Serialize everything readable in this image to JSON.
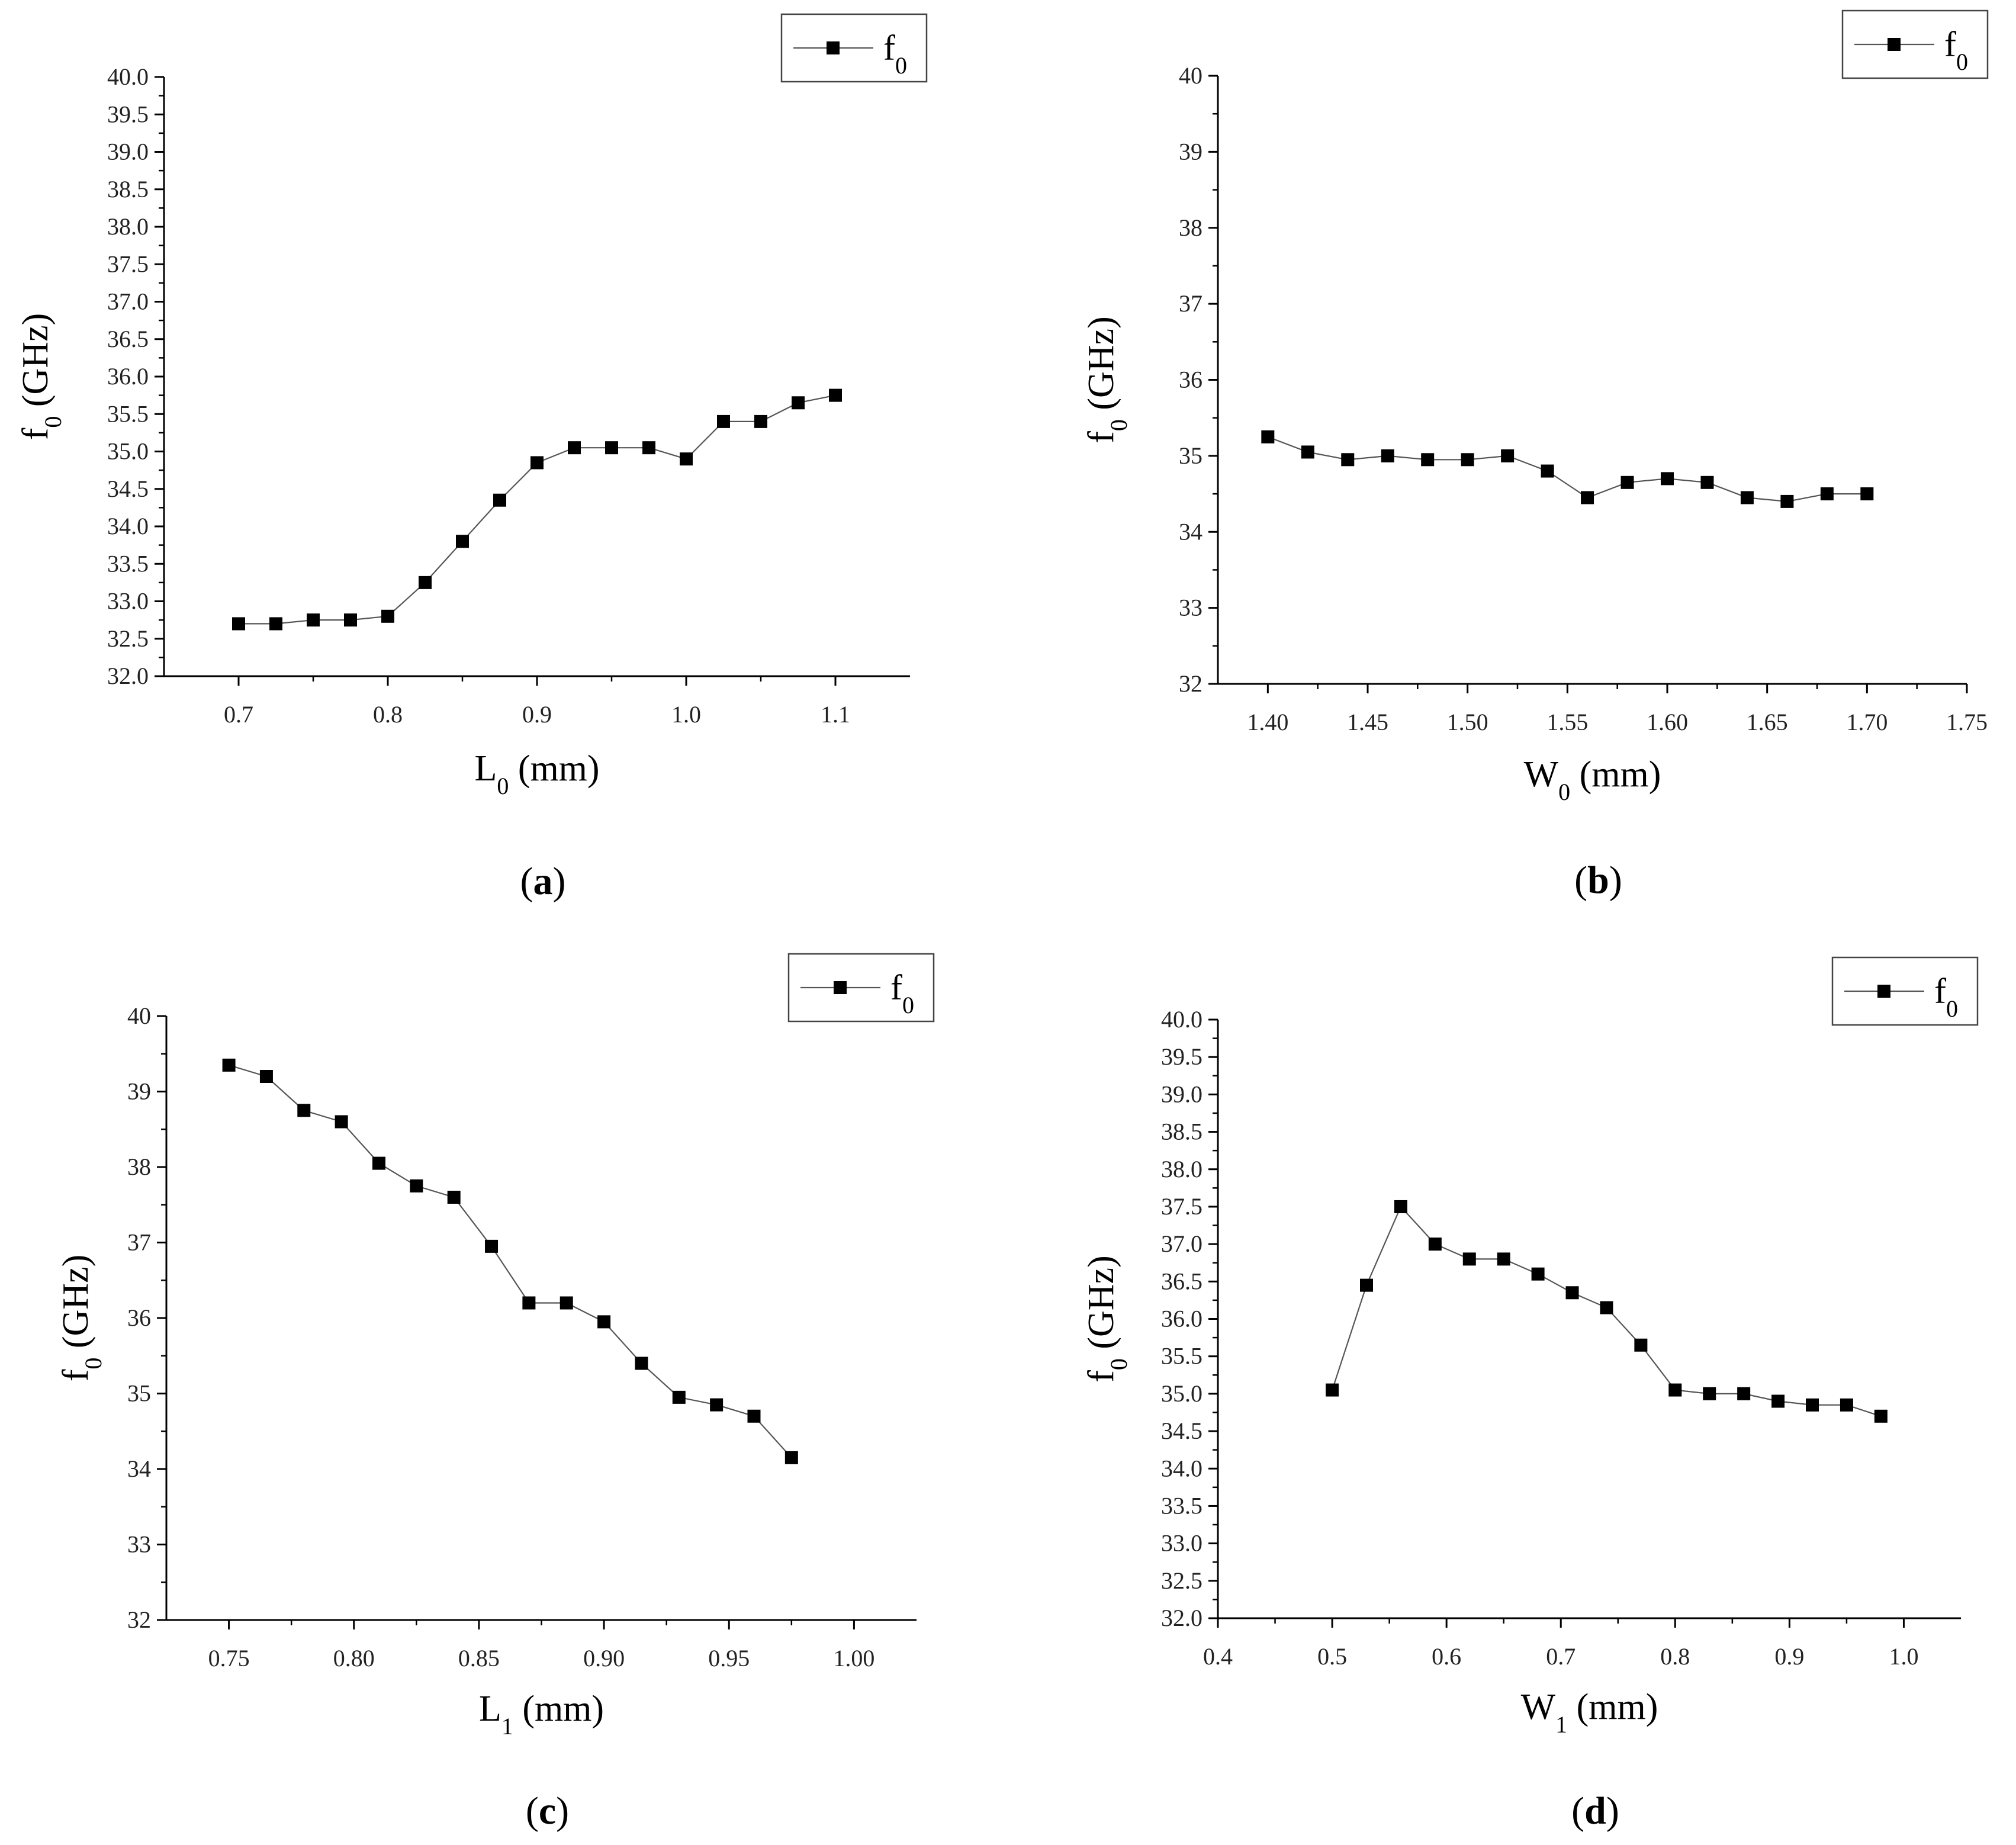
{
  "style": {
    "marker_color": "#000000",
    "line_color": "#555555",
    "axis_color": "#000000",
    "text_color": "#000000"
  },
  "chart_data": [
    {
      "id": "a",
      "type": "line",
      "panel_label": "(a)",
      "panel_letter": "a",
      "xlabel": "L",
      "xlabel_sub": "0",
      "xlabel_unit": " (mm)",
      "ylabel": "f",
      "ylabel_sub": "0",
      "ylabel_unit": " (GHz)",
      "legend": {
        "name": "f",
        "sub": "0",
        "position": "top-right"
      },
      "xlim": [
        0.65,
        1.15
      ],
      "ylim": [
        32.0,
        40.0
      ],
      "xticks": [
        0.7,
        0.8,
        0.9,
        1.0,
        1.1
      ],
      "xtick_labels": [
        "0.7",
        "0.8",
        "0.9",
        "1.0",
        "1.1"
      ],
      "yticks": [
        32.0,
        32.5,
        33.0,
        33.5,
        34.0,
        34.5,
        35.0,
        35.5,
        36.0,
        36.5,
        37.0,
        37.5,
        38.0,
        38.5,
        39.0,
        39.5,
        40.0
      ],
      "ytick_labels": [
        "32.0",
        "32.5",
        "33.0",
        "33.5",
        "34.0",
        "34.5",
        "35.0",
        "35.5",
        "36.0",
        "36.5",
        "37.0",
        "37.5",
        "38.0",
        "38.5",
        "39.0",
        "39.5",
        "40.0"
      ],
      "series": [
        {
          "name": "f0",
          "x": [
            0.7,
            0.725,
            0.75,
            0.775,
            0.8,
            0.825,
            0.85,
            0.875,
            0.9,
            0.925,
            0.95,
            0.975,
            1.0,
            1.025,
            1.05,
            1.075,
            1.1
          ],
          "y": [
            32.7,
            32.7,
            32.75,
            32.75,
            32.8,
            33.25,
            33.8,
            34.35,
            34.85,
            35.05,
            35.05,
            35.05,
            34.9,
            35.4,
            35.4,
            35.65,
            35.75
          ]
        }
      ]
    },
    {
      "id": "b",
      "type": "line",
      "panel_label": "(b)",
      "panel_letter": "b",
      "xlabel": "W",
      "xlabel_sub": "0",
      "xlabel_unit": " (mm)",
      "ylabel": "f",
      "ylabel_sub": "0",
      "ylabel_unit": " (GHz)",
      "legend": {
        "name": "f",
        "sub": "0",
        "position": "top-right"
      },
      "xlim": [
        1.375,
        1.75
      ],
      "ylim": [
        32,
        40
      ],
      "xticks": [
        1.4,
        1.45,
        1.5,
        1.55,
        1.6,
        1.65,
        1.7,
        1.75
      ],
      "xtick_labels": [
        "1.40",
        "1.45",
        "1.50",
        "1.55",
        "1.60",
        "1.65",
        "1.70",
        "1.75"
      ],
      "yticks": [
        32,
        33,
        34,
        35,
        36,
        37,
        38,
        39,
        40
      ],
      "ytick_labels": [
        "32",
        "33",
        "34",
        "35",
        "36",
        "37",
        "38",
        "39",
        "40"
      ],
      "series": [
        {
          "name": "f0",
          "x": [
            1.4,
            1.42,
            1.44,
            1.46,
            1.48,
            1.5,
            1.52,
            1.54,
            1.56,
            1.58,
            1.6,
            1.62,
            1.64,
            1.66,
            1.68,
            1.7
          ],
          "y": [
            35.25,
            35.05,
            34.95,
            35.0,
            34.95,
            34.95,
            35.0,
            34.8,
            34.45,
            34.65,
            34.7,
            34.65,
            34.45,
            34.4,
            34.5,
            34.5
          ]
        }
      ]
    },
    {
      "id": "c",
      "type": "line",
      "panel_label": "(c)",
      "panel_letter": "c",
      "xlabel": "L",
      "xlabel_sub": "1",
      "xlabel_unit": " (mm)",
      "ylabel": "f",
      "ylabel_sub": "0",
      "ylabel_unit": " (GHz)",
      "legend": {
        "name": "f",
        "sub": "0",
        "position": "top-right"
      },
      "xlim": [
        0.725,
        1.025
      ],
      "ylim": [
        32,
        40
      ],
      "xticks": [
        0.75,
        0.8,
        0.85,
        0.9,
        0.95,
        1.0
      ],
      "xtick_labels": [
        "0.75",
        "0.80",
        "0.85",
        "0.90",
        "0.95",
        "1.00"
      ],
      "yticks": [
        32,
        33,
        34,
        35,
        36,
        37,
        38,
        39,
        40
      ],
      "ytick_labels": [
        "32",
        "33",
        "34",
        "35",
        "36",
        "37",
        "38",
        "39",
        "40"
      ],
      "series": [
        {
          "name": "f0",
          "x": [
            0.75,
            0.765,
            0.78,
            0.795,
            0.81,
            0.825,
            0.84,
            0.855,
            0.87,
            0.885,
            0.9,
            0.915,
            0.93,
            0.945,
            0.96,
            0.975
          ],
          "y": [
            39.35,
            39.2,
            38.75,
            38.6,
            38.05,
            37.75,
            37.6,
            36.95,
            36.2,
            36.2,
            35.95,
            35.4,
            34.95,
            34.85,
            34.7,
            34.15
          ]
        }
      ]
    },
    {
      "id": "d",
      "type": "line",
      "panel_label": "(d)",
      "panel_letter": "d",
      "xlabel": "W",
      "xlabel_sub": "1",
      "xlabel_unit": " (mm)",
      "ylabel": "f",
      "ylabel_sub": "0",
      "ylabel_unit": " (GHz)",
      "legend": {
        "name": "f",
        "sub": "0",
        "position": "top-right"
      },
      "xlim": [
        0.4,
        1.05
      ],
      "ylim": [
        32.0,
        40.0
      ],
      "xticks": [
        0.4,
        0.5,
        0.6,
        0.7,
        0.8,
        0.9,
        1.0
      ],
      "xtick_labels": [
        "0.4",
        "0.5",
        "0.6",
        "0.7",
        "0.8",
        "0.9",
        "1.0"
      ],
      "yticks": [
        32.0,
        32.5,
        33.0,
        33.5,
        34.0,
        34.5,
        35.0,
        35.5,
        36.0,
        36.5,
        37.0,
        37.5,
        38.0,
        38.5,
        39.0,
        39.5,
        40.0
      ],
      "ytick_labels": [
        "32.0",
        "32.5",
        "33.0",
        "33.5",
        "34.0",
        "34.5",
        "35.0",
        "35.5",
        "36.0",
        "36.5",
        "37.0",
        "37.5",
        "38.0",
        "38.5",
        "39.0",
        "39.5",
        "40.0"
      ],
      "series": [
        {
          "name": "f0",
          "x": [
            0.5,
            0.53,
            0.56,
            0.59,
            0.62,
            0.65,
            0.68,
            0.71,
            0.74,
            0.77,
            0.8,
            0.83,
            0.86,
            0.89,
            0.92,
            0.95,
            0.98
          ],
          "y": [
            35.05,
            36.45,
            37.5,
            37.0,
            36.8,
            36.8,
            36.6,
            36.35,
            36.15,
            35.65,
            35.05,
            35.0,
            35.0,
            34.9,
            34.85,
            34.85,
            34.7
          ]
        }
      ]
    }
  ]
}
